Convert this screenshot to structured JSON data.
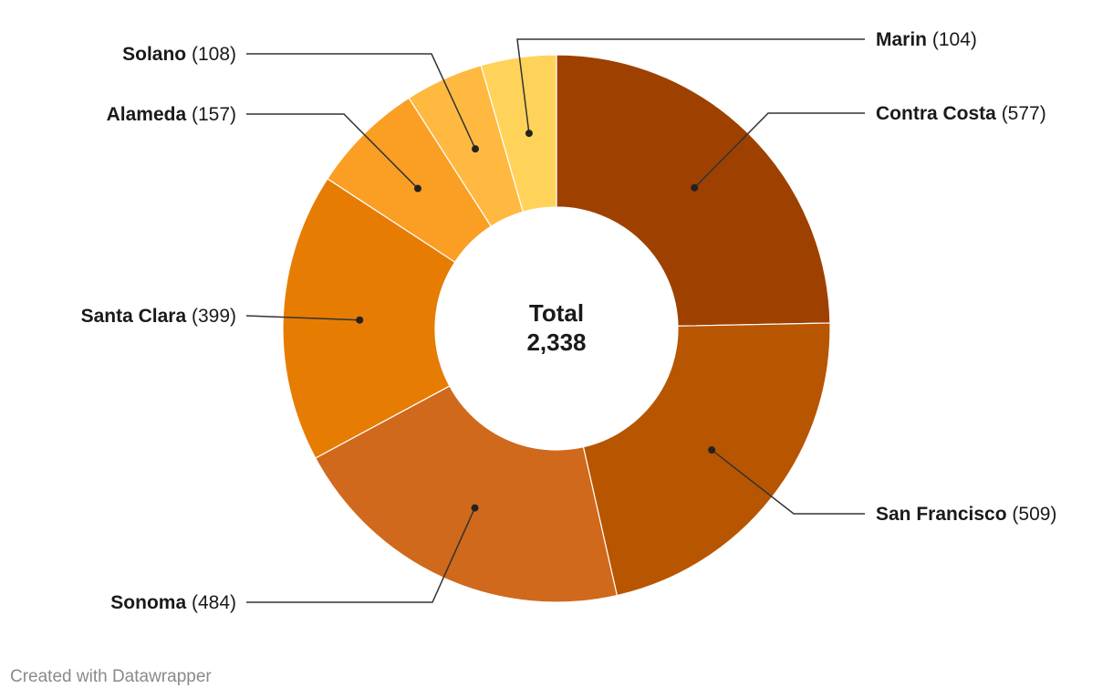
{
  "chart_data": {
    "type": "pie",
    "donut": true,
    "categories": [
      "Contra Costa",
      "San Francisco",
      "Sonoma",
      "Santa Clara",
      "Alameda",
      "Solano",
      "Marin"
    ],
    "values": [
      577,
      509,
      484,
      399,
      157,
      108,
      104
    ],
    "value_labels": [
      "(577)",
      "(509)",
      "(484)",
      "(399)",
      "(157)",
      "(108)",
      "(104)"
    ],
    "colors": [
      "#9e4100",
      "#b85500",
      "#d0691b",
      "#e77c02",
      "#fb9e24",
      "#ffb940",
      "#ffd35a"
    ],
    "center": {
      "title": "Total",
      "value": "2,338"
    }
  },
  "credit": "Created with Datawrapper"
}
